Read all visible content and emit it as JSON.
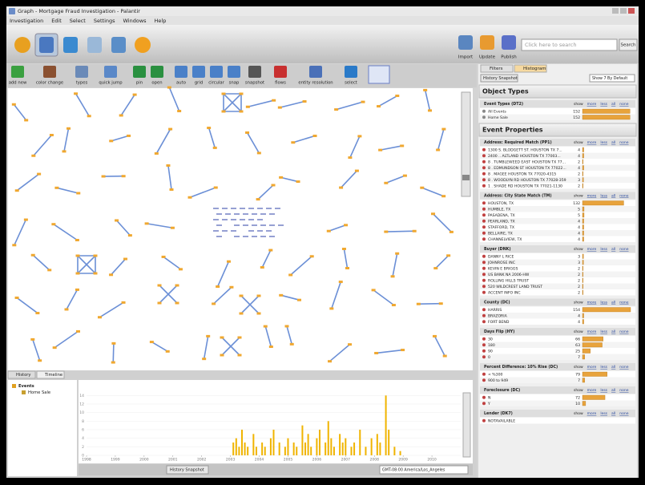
{
  "window": {
    "title": "Graph - Mortgage Fraud Investigation - Palantir",
    "menu": [
      "Investigation",
      "Edit",
      "Select",
      "Settings",
      "Windows",
      "Help"
    ]
  },
  "top_buttons": [
    "Import",
    "Update",
    "Publish"
  ],
  "search": {
    "placeholder": "Click here to search",
    "button": "Search"
  },
  "toolbar": [
    "add new",
    "color change",
    "types",
    "quick jump",
    "pin",
    "open",
    "auto",
    "grid",
    "circular",
    "snap",
    "snapshot",
    "flows",
    "entity resolution",
    "select"
  ],
  "panel": {
    "tabs": [
      "Filters",
      "Histogram"
    ],
    "snapshot": "History Snapshot",
    "show_default": "Show 7 By Default",
    "group_links": [
      "show",
      "more",
      "less",
      "all",
      "none"
    ],
    "sections": [
      {
        "title": "Object Types",
        "groups": [
          {
            "title": "Event Types (DT2)",
            "items": [
              {
                "label": "All Events",
                "count": 152
              },
              {
                "label": "Home Sale",
                "count": 152
              }
            ]
          }
        ]
      },
      {
        "title": "Event Properties",
        "groups": [
          {
            "title": "Address: Required Match (PP1)",
            "items": [
              {
                "label": "1300 S. BLODGETT ST. HOUSTON TX 7...",
                "count": 4
              },
              {
                "label": "2400 .. ALTLAND HOUSTON TX 77003...",
                "count": 4
              },
              {
                "label": "8 . TUMBLEWEED EAST HOUSTON TX 77...",
                "count": 2
              },
              {
                "label": "8 . EDMUNDSON ST HOUSTON TX 77022...",
                "count": 4
              },
              {
                "label": "8 . MAGEE HOUSTON TX 77020-4315",
                "count": 2
              },
              {
                "label": "8 . WOODLYN RD HOUSTON TX 77028-359",
                "count": 3
              },
              {
                "label": "1 . SHADE RD HOUSTON TX 77021-1130",
                "count": 2
              }
            ]
          },
          {
            "title": "Address: City State Match (TM)",
            "items": [
              {
                "label": "HOUSTON, TX",
                "count": 132
              },
              {
                "label": "HUMBLE, TX",
                "count": 5
              },
              {
                "label": "PASADENA, TX",
                "count": 5
              },
              {
                "label": "PEARLAND, TX",
                "count": 4
              },
              {
                "label": "STAFFORD, TX",
                "count": 4
              },
              {
                "label": "BELLAIRE, TX",
                "count": 4
              },
              {
                "label": "CHANNELVIEW, TX",
                "count": 4
              }
            ]
          },
          {
            "title": "Buyer (DNK)",
            "items": [
              {
                "label": "DANNY L RICE",
                "count": 3
              },
              {
                "label": "JOHNROSE INC",
                "count": 3
              },
              {
                "label": "KEVIN E BRIGGS",
                "count": 2
              },
              {
                "label": "US BANK NA 2006-HW",
                "count": 2
              },
              {
                "label": "ROLLING HILLS TRUST",
                "count": 2
              },
              {
                "label": "520 WILDCREST LAND TRUST",
                "count": 2
              },
              {
                "label": "ACCENT INFO INC",
                "count": 2
              }
            ]
          },
          {
            "title": "County (DC)",
            "items": [
              {
                "label": "HARRIS",
                "count": 154
              },
              {
                "label": "BRAZORIA",
                "count": 4
              },
              {
                "label": "FORT BEND",
                "count": 4
              }
            ]
          },
          {
            "title": "Days Flip (HY)",
            "items": [
              {
                "label": "30",
                "count": 66
              },
              {
                "label": "180",
                "count": 63
              },
              {
                "label": "90",
                "count": 25
              },
              {
                "label": "0",
                "count": 7
              }
            ]
          },
          {
            "title": "Percent Difference: 10% Rise (DC)",
            "items": [
              {
                "label": "< %300",
                "count": 79
              },
              {
                "label": "900 to 949",
                "count": 7
              }
            ]
          },
          {
            "title": "Foreclosure (DC)",
            "items": [
              {
                "label": "N",
                "count": 72
              },
              {
                "label": "Y",
                "count": 10
              }
            ]
          },
          {
            "title": "Lender (DK7)",
            "items": [
              {
                "label": "NOTAVAILABLE"
              }
            ]
          }
        ]
      }
    ]
  },
  "bottom": {
    "tabs": [
      "History",
      "Timeline"
    ],
    "tree": [
      "Events",
      "Home Sale"
    ],
    "snapshot": "History Snapshot",
    "timezone": "GMT-08:00 America/Los_Angeles",
    "chart_data": {
      "type": "bar",
      "x": [
        2003.1,
        2003.2,
        2003.3,
        2003.4,
        2003.5,
        2003.6,
        2003.8,
        2003.9,
        2004.1,
        2004.2,
        2004.4,
        2004.5,
        2004.7,
        2004.9,
        2005.0,
        2005.2,
        2005.3,
        2005.5,
        2005.6,
        2005.7,
        2005.8,
        2006.0,
        2006.1,
        2006.3,
        2006.4,
        2006.5,
        2006.6,
        2006.8,
        2006.9,
        2007.0,
        2007.2,
        2007.3,
        2007.5,
        2007.7,
        2007.9,
        2008.1,
        2008.2,
        2008.4,
        2008.5,
        2008.7,
        2008.9
      ],
      "values": [
        3,
        4,
        2,
        6,
        3,
        2,
        5,
        2,
        3,
        2,
        4,
        6,
        3,
        2,
        4,
        3,
        2,
        7,
        3,
        5,
        2,
        4,
        6,
        3,
        8,
        4,
        2,
        5,
        3,
        4,
        2,
        3,
        6,
        2,
        4,
        5,
        3,
        14,
        6,
        2,
        1
      ],
      "color": "#f0b400",
      "xlim": [
        1998,
        2011
      ],
      "xticks": [
        1998,
        1999,
        2000,
        2001,
        2002,
        2003,
        2004,
        2005,
        2006,
        2007,
        2008,
        2009,
        2010
      ],
      "ylim": [
        0,
        15
      ],
      "yticks": [
        0,
        2,
        4,
        6,
        8,
        10,
        12,
        14
      ]
    }
  }
}
